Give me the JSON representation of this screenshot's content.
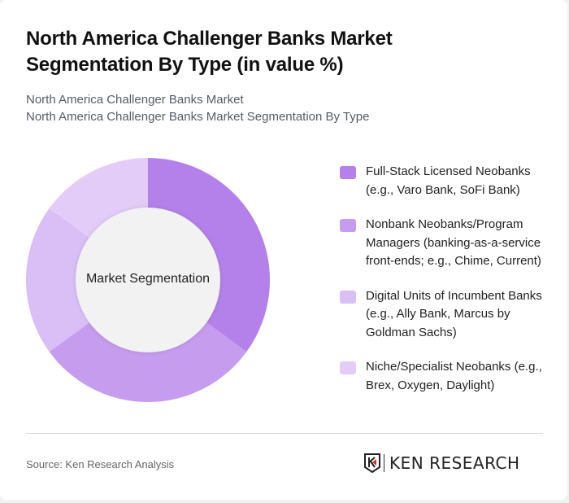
{
  "header": {
    "title": "North America Challenger Banks Market Segmentation By Type (in value %)",
    "subtitle_1": "North America Challenger Banks Market",
    "subtitle_2": "North America Challenger Banks Market Segmentation By Type"
  },
  "donut": {
    "center_label": "Market Segmentation"
  },
  "legend": {
    "items": [
      {
        "label": "Full-Stack Licensed Neobanks (e.g., Varo Bank, SoFi Bank)",
        "color": "#b481ea"
      },
      {
        "label": "Nonbank Neobanks/Program Managers (banking-as-a-service front-ends; e.g., Chime, Current)",
        "color": "#c69cef"
      },
      {
        "label": "Digital Units of Incumbent Banks (e.g., Ally Bank, Marcus by Goldman Sachs)",
        "color": "#d9bff6"
      },
      {
        "label": "Niche/Specialist Neobanks (e.g., Brex, Oxygen, Daylight)",
        "color": "#e3cdf8"
      }
    ]
  },
  "footer": {
    "source": "Source: Ken Research Analysis",
    "logo_text": "KEN RESEARCH",
    "logo_icon": "ken-research-k-shield-icon"
  },
  "chart_data": {
    "type": "pie",
    "subtype": "donut",
    "title": "North America Challenger Banks Market Segmentation By Type (in value %)",
    "center_label": "Market Segmentation",
    "categories": [
      "Full-Stack Licensed Neobanks (e.g., Varo Bank, SoFi Bank)",
      "Nonbank Neobanks/Program Managers (banking-as-a-service front-ends; e.g., Chime, Current)",
      "Digital Units of Incumbent Banks (e.g., Ally Bank, Marcus by Goldman Sachs)",
      "Niche/Specialist Neobanks (e.g., Brex, Oxygen, Daylight)"
    ],
    "values": [
      35,
      30,
      20,
      15
    ],
    "colors": [
      "#b481ea",
      "#c69cef",
      "#d9bff6",
      "#e3cdf8"
    ],
    "start_angle": "12 o'clock, clockwise",
    "legend_position": "right"
  }
}
